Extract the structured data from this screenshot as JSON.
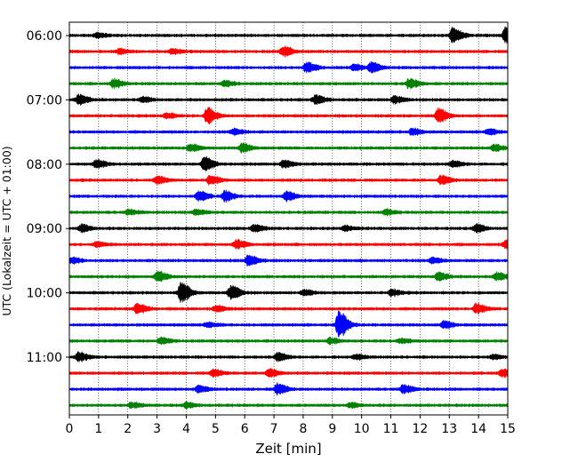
{
  "chart_data": {
    "type": "line",
    "xlabel": "Zeit  [min]",
    "ylabel": "UTC (Lokalzeit = UTC + 01:00)",
    "xlim": [
      0,
      15
    ],
    "x_ticks": [
      0,
      1,
      2,
      3,
      4,
      5,
      6,
      7,
      8,
      9,
      10,
      11,
      12,
      13,
      14,
      15
    ],
    "y_tick_labels": [
      "06:00",
      "07:00",
      "08:00",
      "09:00",
      "10:00",
      "11:00"
    ],
    "y_tick_rows": [
      0,
      4,
      8,
      12,
      16,
      20
    ],
    "row_minutes": 15,
    "row_colors": [
      "#000000",
      "#ff0000",
      "#0000ff",
      "#008000"
    ],
    "grid": "vertical dotted",
    "rows": [
      {
        "start": "06:00",
        "events": [
          [
            13.1,
            1.0
          ],
          [
            14.9,
            1.1
          ],
          [
            0.9,
            0.35
          ]
        ]
      },
      {
        "start": "06:15",
        "events": [
          [
            7.3,
            0.7
          ],
          [
            1.7,
            0.35
          ],
          [
            3.5,
            0.35
          ]
        ]
      },
      {
        "start": "06:30",
        "events": [
          [
            8.1,
            0.75
          ],
          [
            10.3,
            0.7
          ],
          [
            9.7,
            0.45
          ]
        ]
      },
      {
        "start": "06:45",
        "events": [
          [
            1.5,
            0.6
          ],
          [
            5.3,
            0.4
          ],
          [
            11.6,
            0.7
          ]
        ]
      },
      {
        "start": "07:00",
        "events": [
          [
            0.3,
            0.7
          ],
          [
            8.4,
            0.6
          ],
          [
            11.1,
            0.5
          ],
          [
            2.5,
            0.35
          ]
        ]
      },
      {
        "start": "07:15",
        "events": [
          [
            4.7,
            1.1
          ],
          [
            12.6,
            1.0
          ],
          [
            3.3,
            0.35
          ]
        ]
      },
      {
        "start": "07:30",
        "events": [
          [
            5.6,
            0.45
          ],
          [
            11.7,
            0.45
          ],
          [
            14.3,
            0.4
          ]
        ]
      },
      {
        "start": "07:45",
        "events": [
          [
            4.1,
            0.5
          ],
          [
            5.9,
            0.6
          ],
          [
            14.5,
            0.45
          ]
        ]
      },
      {
        "start": "08:00",
        "events": [
          [
            0.9,
            0.6
          ],
          [
            4.6,
            1.0
          ],
          [
            7.3,
            0.5
          ],
          [
            13.1,
            0.4
          ]
        ]
      },
      {
        "start": "08:15",
        "events": [
          [
            3.0,
            0.5
          ],
          [
            4.8,
            0.6
          ],
          [
            12.7,
            0.6
          ]
        ]
      },
      {
        "start": "08:30",
        "events": [
          [
            4.4,
            0.7
          ],
          [
            5.3,
            0.7
          ],
          [
            7.4,
            0.6
          ]
        ]
      },
      {
        "start": "08:45",
        "events": [
          [
            2.0,
            0.35
          ],
          [
            4.3,
            0.4
          ],
          [
            10.8,
            0.35
          ]
        ]
      },
      {
        "start": "09:00",
        "events": [
          [
            0.4,
            0.5
          ],
          [
            6.3,
            0.5
          ],
          [
            13.9,
            0.55
          ],
          [
            9.4,
            0.35
          ]
        ]
      },
      {
        "start": "09:15",
        "events": [
          [
            5.7,
            0.6
          ],
          [
            14.9,
            0.5
          ],
          [
            0.9,
            0.3
          ]
        ]
      },
      {
        "start": "09:30",
        "events": [
          [
            6.1,
            0.7
          ],
          [
            0.1,
            0.4
          ],
          [
            12.4,
            0.4
          ]
        ]
      },
      {
        "start": "09:45",
        "events": [
          [
            3.0,
            0.7
          ],
          [
            12.6,
            0.6
          ],
          [
            14.6,
            0.5
          ]
        ]
      },
      {
        "start": "10:00",
        "events": [
          [
            3.8,
            1.4
          ],
          [
            5.5,
            1.0
          ],
          [
            8.0,
            0.4
          ],
          [
            11.0,
            0.4
          ]
        ]
      },
      {
        "start": "10:15",
        "events": [
          [
            2.3,
            0.7
          ],
          [
            13.9,
            0.7
          ],
          [
            5.0,
            0.4
          ]
        ]
      },
      {
        "start": "10:30",
        "events": [
          [
            9.2,
            2.0
          ],
          [
            12.8,
            0.5
          ],
          [
            4.7,
            0.3
          ]
        ]
      },
      {
        "start": "10:45",
        "events": [
          [
            3.1,
            0.45
          ],
          [
            8.9,
            0.4
          ],
          [
            11.3,
            0.3
          ]
        ]
      },
      {
        "start": "11:00",
        "events": [
          [
            0.3,
            0.6
          ],
          [
            7.1,
            0.55
          ],
          [
            9.8,
            0.3
          ],
          [
            14.5,
            0.3
          ]
        ]
      },
      {
        "start": "11:15",
        "events": [
          [
            4.9,
            0.5
          ],
          [
            6.8,
            0.55
          ],
          [
            14.8,
            0.55
          ]
        ]
      },
      {
        "start": "11:30",
        "events": [
          [
            7.1,
            0.8
          ],
          [
            4.4,
            0.45
          ],
          [
            11.4,
            0.6
          ]
        ]
      },
      {
        "start": "11:45",
        "events": [
          [
            2.1,
            0.35
          ],
          [
            4.0,
            0.4
          ],
          [
            9.6,
            0.3
          ]
        ]
      }
    ]
  }
}
